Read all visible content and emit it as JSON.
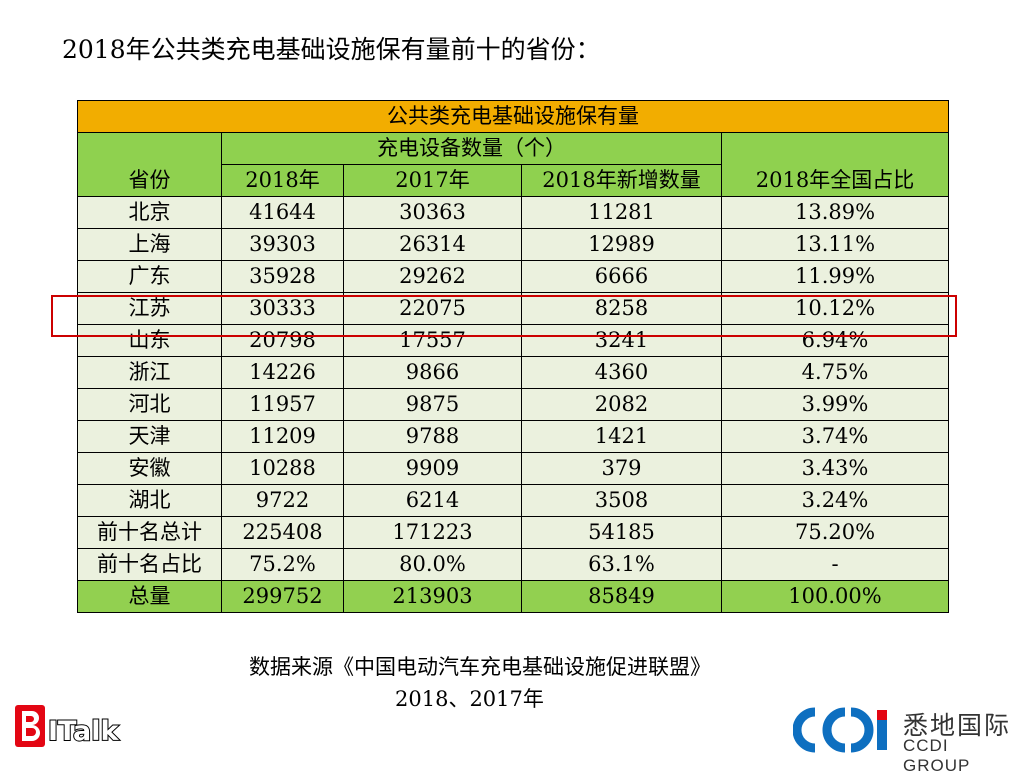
{
  "page_title": "2018年公共类充电基础设施保有量前十的省份：",
  "table": {
    "main_header": "公共类充电基础设施保有量",
    "group_header": "充电设备数量（个）",
    "columns": [
      "省份",
      "2018年",
      "2017年",
      "2018年新增数量",
      "2018年全国占比"
    ],
    "rows": [
      [
        "北京",
        "41644",
        "30363",
        "11281",
        "13.89%"
      ],
      [
        "上海",
        "39303",
        "26314",
        "12989",
        "13.11%"
      ],
      [
        "广东",
        "35928",
        "29262",
        "6666",
        "11.99%"
      ],
      [
        "江苏",
        "30333",
        "22075",
        "8258",
        "10.12%"
      ],
      [
        "山东",
        "20798",
        "17557",
        "3241",
        "6.94%"
      ],
      [
        "浙江",
        "14226",
        "9866",
        "4360",
        "4.75%"
      ],
      [
        "河北",
        "11957",
        "9875",
        "2082",
        "3.99%"
      ],
      [
        "天津",
        "11209",
        "9788",
        "1421",
        "3.74%"
      ],
      [
        "安徽",
        "10288",
        "9909",
        "379",
        "3.43%"
      ],
      [
        "湖北",
        "9722",
        "6214",
        "3508",
        "3.24%"
      ],
      [
        "前十名总计",
        "225408",
        "171223",
        "54185",
        "75.20%"
      ],
      [
        "前十名占比",
        "75.2%",
        "80.0%",
        "63.1%",
        "-"
      ]
    ],
    "total_row": [
      "总量",
      "299752",
      "213903",
      "85849",
      "100.00%"
    ],
    "highlighted_province": "江苏"
  },
  "chart_data": {
    "type": "table",
    "title": "公共类充电基础设施保有量",
    "columns": [
      "省份",
      "2018年",
      "2017年",
      "2018年新增数量",
      "2018年全国占比"
    ],
    "rows": [
      [
        "北京",
        41644,
        30363,
        11281,
        "13.89%"
      ],
      [
        "上海",
        39303,
        26314,
        12989,
        "13.11%"
      ],
      [
        "广东",
        35928,
        29262,
        6666,
        "11.99%"
      ],
      [
        "江苏",
        30333,
        22075,
        8258,
        "10.12%"
      ],
      [
        "山东",
        20798,
        17557,
        3241,
        "6.94%"
      ],
      [
        "浙江",
        14226,
        9866,
        4360,
        "4.75%"
      ],
      [
        "河北",
        11957,
        9875,
        2082,
        "3.99%"
      ],
      [
        "天津",
        11209,
        9788,
        1421,
        "3.74%"
      ],
      [
        "安徽",
        10288,
        9909,
        379,
        "3.43%"
      ],
      [
        "湖北",
        9722,
        6214,
        3508,
        "3.24%"
      ],
      [
        "前十名总计",
        225408,
        171223,
        54185,
        "75.20%"
      ],
      [
        "前十名占比",
        "75.2%",
        "80.0%",
        "63.1%",
        "-"
      ],
      [
        "总量",
        299752,
        213903,
        85849,
        "100.00%"
      ]
    ]
  },
  "source": {
    "line1": "数据来源《中国电动汽车充电基础设施促进联盟》",
    "line2": "2018、2017年"
  },
  "logos": {
    "left_text": "BITalk",
    "right_cn": "悉地国际",
    "right_en": "CCDI GROUP"
  },
  "colors": {
    "header_orange": "#f2ad00",
    "header_green": "#8fd14f",
    "row_bg": "#ebf1de",
    "total_green": "#92d050",
    "highlight_red": "#cc0000",
    "logo_blue": "#0e6fc0",
    "logo_red": "#e30613"
  }
}
